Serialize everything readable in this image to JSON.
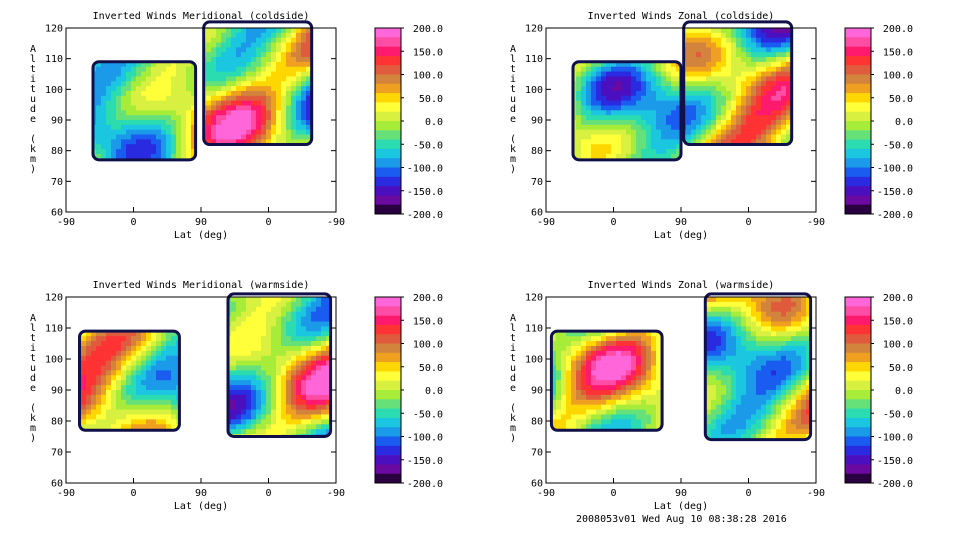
{
  "footer": "2008053v01 Wed Aug 10 08:38:28 2016",
  "colorbar": {
    "ticks": [
      "200.0",
      "150.0",
      "100.0",
      "50.0",
      "0.0",
      "-50.0",
      "-100.0",
      "-150.0",
      "-200.0"
    ],
    "colors_top_to_bottom": [
      "#ff66d9",
      "#ff4da6",
      "#ff1a6e",
      "#ff3333",
      "#e05a3d",
      "#d2843c",
      "#f0a020",
      "#ffd700",
      "#ffff3a",
      "#d8f040",
      "#a8ec3a",
      "#66e078",
      "#2adcb0",
      "#1ac6e0",
      "#1a9ae8",
      "#1a5cf0",
      "#2a2ae0",
      "#4a10c0",
      "#6a0aa0",
      "#2a0040"
    ]
  },
  "chart_data": [
    {
      "type": "heatmap",
      "title": "Inverted Winds Meridional (coldside)",
      "xlabel": "Lat (deg)",
      "ylabel": "Altitude (km)",
      "xticks": [
        "-90",
        "0",
        "90",
        "0",
        "-90"
      ],
      "yticks": [
        "120",
        "110",
        "100",
        "90",
        "80",
        "70",
        "60"
      ],
      "ylim": [
        60,
        120
      ],
      "zlim": [
        -200,
        200
      ]
    },
    {
      "type": "heatmap",
      "title": "Inverted Winds Zonal (coldside)",
      "xlabel": "Lat (deg)",
      "ylabel": "Altitude (km)",
      "xticks": [
        "-90",
        "0",
        "90",
        "0",
        "-90"
      ],
      "yticks": [
        "120",
        "110",
        "100",
        "90",
        "80",
        "70",
        "60"
      ],
      "ylim": [
        60,
        120
      ],
      "zlim": [
        -200,
        200
      ]
    },
    {
      "type": "heatmap",
      "title": "Inverted Winds Meridional (warmside)",
      "xlabel": "Lat (deg)",
      "ylabel": "Altitude (km)",
      "xticks": [
        "-90",
        "0",
        "90",
        "0",
        "-90"
      ],
      "yticks": [
        "120",
        "110",
        "100",
        "90",
        "80",
        "70",
        "60"
      ],
      "ylim": [
        60,
        120
      ],
      "zlim": [
        -200,
        200
      ]
    },
    {
      "type": "heatmap",
      "title": "Inverted Winds Zonal (warmside)",
      "xlabel": "Lat (deg)",
      "ylabel": "Altitude (km)",
      "xticks": [
        "-90",
        "0",
        "90",
        "0",
        "-90"
      ],
      "yticks": [
        "120",
        "110",
        "100",
        "90",
        "80",
        "70",
        "60"
      ],
      "ylim": [
        60,
        120
      ],
      "zlim": [
        -200,
        200
      ]
    }
  ]
}
